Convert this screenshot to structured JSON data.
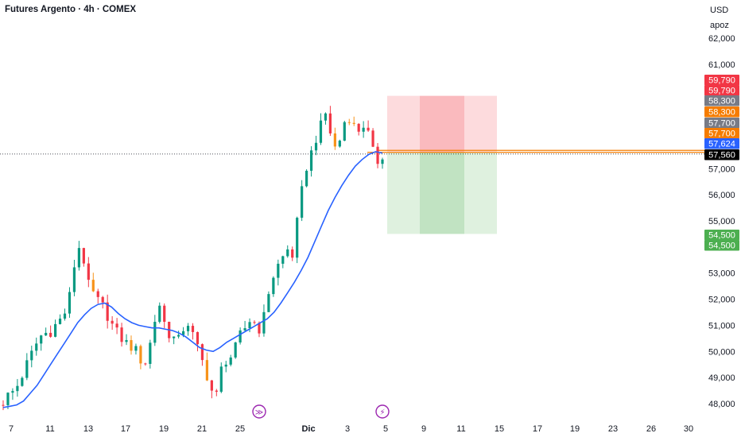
{
  "header": {
    "title": "Futures Argento · 4h · COMEX",
    "currency": "USD",
    "scale_name": "apoz"
  },
  "colors": {
    "up": "#089981",
    "down": "#f23645",
    "wick_down_alt": "#f7931a",
    "ma_line": "#2962ff",
    "stop_zone": "#f23645",
    "target_zone": "#4caf50",
    "entry_line": "#f57c00",
    "last_price_badge": "#000000"
  },
  "chart_data": {
    "type": "candlestick",
    "ylim": [
      47800,
      62300
    ],
    "y_ticks": [
      "62,000",
      "61,000",
      "57,000",
      "56,000",
      "55,000",
      "53,000",
      "52,000",
      "51,000",
      "50,000",
      "49,000",
      "48,000"
    ],
    "y_tick_values": [
      62000,
      61000,
      57000,
      56000,
      55000,
      53000,
      52000,
      51000,
      50000,
      49000,
      48000
    ],
    "x_ticks": [
      "7",
      "11",
      "13",
      "17",
      "19",
      "21",
      "25",
      "Dic",
      "3",
      "5",
      "9",
      "11",
      "15",
      "17",
      "19",
      "23",
      "26",
      "30"
    ],
    "x_bold": "Dic",
    "candles_close_path": [
      48100,
      48300,
      48450,
      48700,
      49100,
      49500,
      49900,
      50300,
      50600,
      50700,
      50800,
      51000,
      51200,
      51500,
      52100,
      53300,
      54000,
      53500,
      52500,
      52200,
      51900,
      51700,
      51400,
      51000,
      50700,
      50500,
      50300,
      50200,
      50000,
      49700,
      49600,
      50300,
      51200,
      51800,
      51100,
      50700,
      50500,
      50400,
      50900,
      51100,
      50600,
      50100,
      49600,
      49100,
      48500,
      48300,
      49300,
      49700,
      49800,
      50100,
      50600,
      50900,
      51200,
      51100,
      50900,
      51300,
      52300,
      52900,
      53300,
      53600,
      53900,
      53700,
      54900,
      56100,
      57100,
      57600,
      58200,
      58600,
      59100,
      58400,
      57800,
      58100,
      58800,
      59000,
      58600,
      58500,
      58700,
      58300,
      57600,
      57300,
      57560
    ],
    "ma_path": [
      47850,
      47900,
      47950,
      48100,
      48400,
      48700,
      49100,
      49500,
      49900,
      50300,
      50700,
      51100,
      51400,
      51650,
      51800,
      51850,
      51700,
      51450,
      51250,
      51100,
      51000,
      50950,
      50900,
      50900,
      50850,
      50800,
      50700,
      50550,
      50350,
      50150,
      50050,
      50000,
      50150,
      50350,
      50500,
      50650,
      50800,
      50950,
      51100,
      51250,
      51500,
      51850,
      52250,
      52650,
      53100,
      53600,
      54200,
      54800,
      55400,
      55900,
      56350,
      56750,
      57100,
      57350,
      57550,
      57650,
      57600
    ],
    "position": {
      "entry": 57624,
      "stop": 59790,
      "target": 54500,
      "lines": [
        57700,
        57624
      ]
    },
    "price_badges": [
      {
        "label": "59,790",
        "value": 59790,
        "color": "#f23645"
      },
      {
        "label": "59,790",
        "value": 59790,
        "color": "#f23645"
      },
      {
        "label": "58,300",
        "value": 58300,
        "color": "#787b86"
      },
      {
        "label": "58,300",
        "value": 58300,
        "color": "#f57c00"
      },
      {
        "label": "57,700",
        "value": 57700,
        "color": "#787b86"
      },
      {
        "label": "57,700",
        "value": 57700,
        "color": "#f57c00"
      },
      {
        "label": "57,624",
        "value": 57624,
        "color": "#2962ff"
      },
      {
        "label": "57,560",
        "value": 57560,
        "color": "#000000"
      },
      {
        "label": "54,500",
        "value": 54500,
        "color": "#4caf50"
      },
      {
        "label": "54,500",
        "value": 54500,
        "color": "#4caf50"
      }
    ],
    "last_price": 57560,
    "markers": [
      {
        "name": "forward-icon",
        "glyph": "≫"
      },
      {
        "name": "lightning-icon",
        "glyph": "⚡"
      }
    ]
  }
}
